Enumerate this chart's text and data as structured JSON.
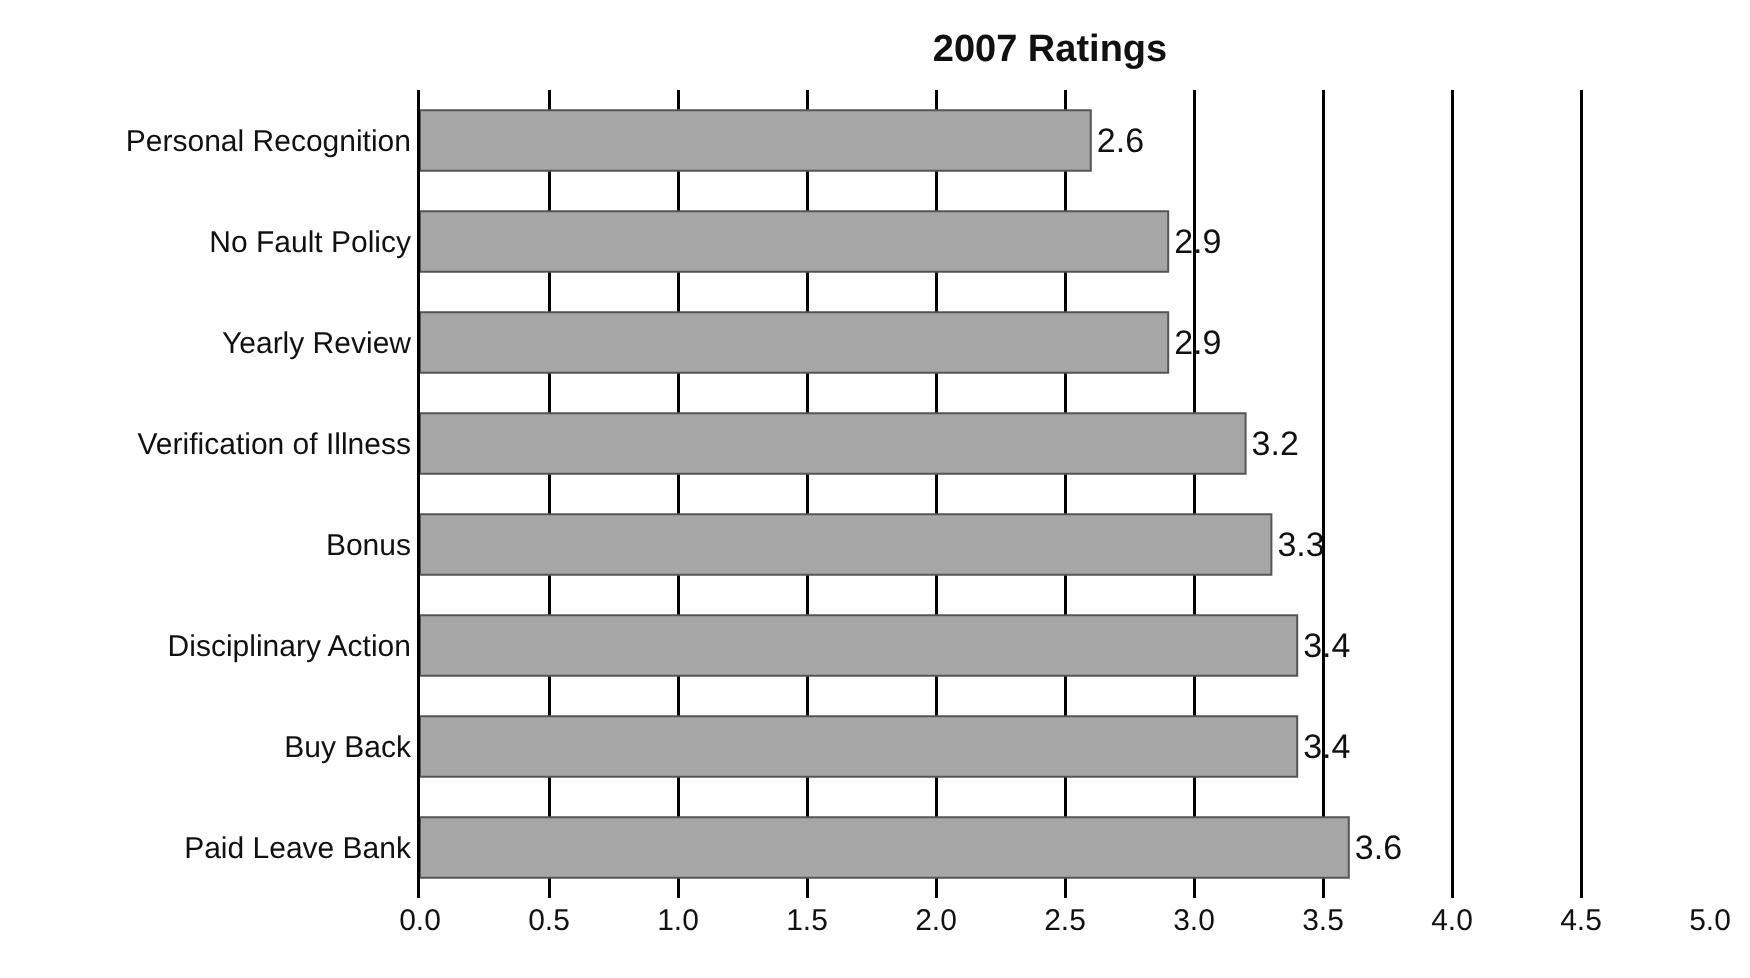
{
  "chart_data": {
    "type": "bar",
    "orientation": "horizontal",
    "title": "2007 Ratings",
    "categories": [
      "Personal Recognition",
      "No Fault Policy",
      "Yearly Review",
      "Verification of Illness",
      "Bonus",
      "Disciplinary Action",
      "Buy Back",
      "Paid Leave Bank"
    ],
    "values": [
      2.6,
      2.9,
      2.9,
      3.2,
      3.3,
      3.4,
      3.4,
      3.6
    ],
    "color": "#a6a6a6",
    "xlim": [
      0,
      5
    ],
    "xticks": [
      {
        "value": 0,
        "label": "0.0"
      },
      {
        "value": 0.5,
        "label": "0.5"
      },
      {
        "value": 1,
        "label": "1.0"
      },
      {
        "value": 1.5,
        "label": "1.5"
      },
      {
        "value": 2,
        "label": "2.0"
      },
      {
        "value": 2.5,
        "label": "2.5"
      },
      {
        "value": 3,
        "label": "3.0"
      },
      {
        "value": 3.5,
        "label": "3.5"
      },
      {
        "value": 4,
        "label": "4.0"
      },
      {
        "value": 4.5,
        "label": "4.5"
      },
      {
        "value": 5,
        "label": "5.0"
      }
    ],
    "grid": "x",
    "data_labels": true
  }
}
